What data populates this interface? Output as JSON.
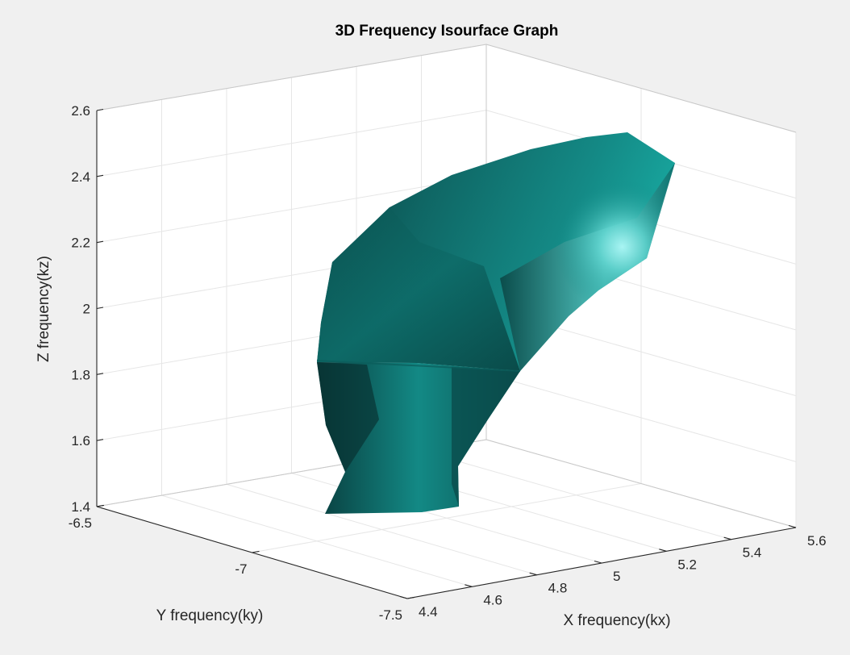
{
  "chart_data": {
    "type": "surface3d",
    "title": "3D Frequency Isourface Graph",
    "xlabel": "X frequency(kx)",
    "ylabel": "Y frequency(ky)",
    "zlabel": "Z frequency(kz)",
    "xlim": [
      4.4,
      5.6
    ],
    "ylim": [
      -7.5,
      -6.5
    ],
    "zlim": [
      1.4,
      2.6
    ],
    "x_ticks": [
      "4.4",
      "4.6",
      "4.8",
      "5",
      "5.2",
      "5.4",
      "5.6"
    ],
    "y_ticks": [
      "-6.5",
      "-7",
      "-7.5"
    ],
    "z_ticks": [
      "1.4",
      "1.6",
      "1.8",
      "2",
      "2.2",
      "2.4",
      "2.6"
    ],
    "grid": true,
    "surface_color": "#128a87",
    "highlight_color": "#b4fcfb",
    "shadow_color": "#073a3a"
  }
}
